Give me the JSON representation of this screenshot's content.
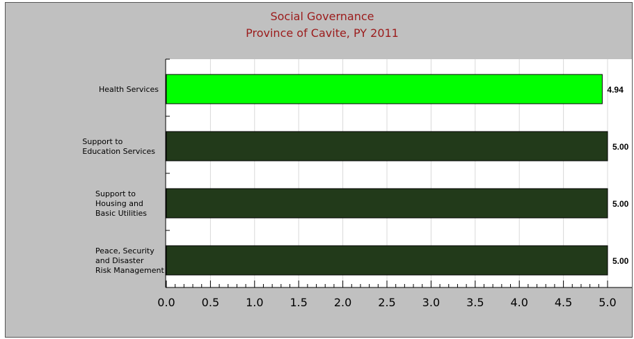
{
  "chart_data": {
    "type": "bar",
    "orientation": "horizontal",
    "title": [
      "Social Governance",
      "Province of Cavite, PY 2011"
    ],
    "categories": [
      [
        "Health Services"
      ],
      [
        "Support to",
        "Education Services"
      ],
      [
        "Support to",
        "Housing and",
        "Basic Utilities"
      ],
      [
        "Peace, Security",
        "and Disaster",
        "Risk Management"
      ]
    ],
    "values": [
      4.94,
      5.0,
      5.0,
      5.0
    ],
    "value_labels": [
      "4.94",
      "5.00",
      "5.00",
      "5.00"
    ],
    "bar_colors": [
      "#00ff00",
      "#223a1a",
      "#223a1a",
      "#223a1a"
    ],
    "xlim": [
      0,
      5
    ],
    "xticks": [
      "0.0",
      "0.5",
      "1.0",
      "1.5",
      "2.0",
      "2.5",
      "3.0",
      "3.5",
      "4.0",
      "4.5",
      "5.0"
    ],
    "grid": true,
    "legend": "none",
    "colors": {
      "background": "#c0c0c0",
      "plot_area": "#ffffff",
      "title": "#9b1b1b",
      "grid": "#d8d8d8"
    }
  }
}
